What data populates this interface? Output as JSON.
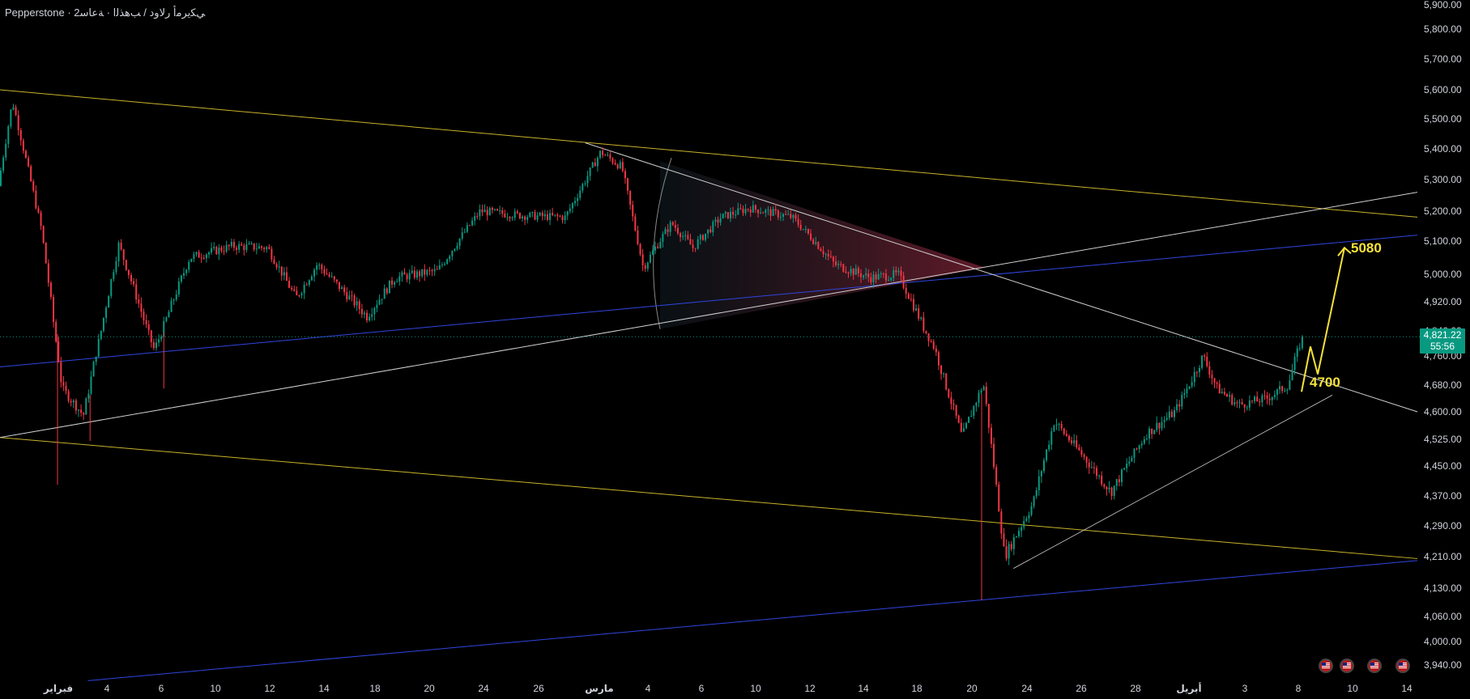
{
  "header": {
    "title": "Pepperstone · ﻲﻜﻳﺮﻣﺃ ﺭﻻﻭﺩ / ﺐﻫﺬﻟﺍ · ﺔﻋﺎﺳ2"
  },
  "price_tag": {
    "price": "4,821.22",
    "countdown": "55:56"
  },
  "flags": [
    {
      "name": "us-flag-icon"
    },
    {
      "name": "us-flag-icon"
    },
    {
      "name": "us-flag-icon"
    },
    {
      "name": "us-flag-icon"
    }
  ],
  "colors": {
    "background": "#000000",
    "up": "#089981",
    "down": "#f23645",
    "yellow_line": "#c9b32a",
    "blue_line": "#2f46e0",
    "white_line": "#d0d0d0",
    "arrow": "#f5e23a",
    "price_line": "#089981"
  },
  "chart_data": {
    "type": "candlestick",
    "title": "",
    "y_ticks": [
      "5,900.00",
      "5,800.00",
      "5,700.00",
      "5,600.00",
      "5,500.00",
      "5,400.00",
      "5,300.00",
      "5,200.00",
      "5,100.00",
      "5,000.00",
      "4,920.00",
      "4,840.00",
      "4,760.00",
      "4,680.00",
      "4,600.00",
      "4,525.00",
      "4,450.00",
      "4,370.00",
      "4,290.00",
      "4,210.00",
      "4,130.00",
      "4,060.00",
      "4,000.00",
      "3,940.00"
    ],
    "x_ticks": [
      "فبراير",
      "4",
      "6",
      "10",
      "12",
      "14",
      "18",
      "20",
      "24",
      "26",
      "مارس",
      "4",
      "6",
      "10",
      "12",
      "14",
      "18",
      "20",
      "24",
      "26",
      "28",
      "أبريل",
      "3",
      "8",
      "10",
      "14"
    ],
    "last_price": 4821.22,
    "path": [
      [
        0,
        5280
      ],
      [
        0.01,
        5560
      ],
      [
        0.03,
        5150
      ],
      [
        0.045,
        4670
      ],
      [
        0.06,
        4590
      ],
      [
        0.085,
        5090
      ],
      [
        0.11,
        4780
      ],
      [
        0.135,
        5050
      ],
      [
        0.165,
        5085
      ],
      [
        0.19,
        5080
      ],
      [
        0.21,
        4930
      ],
      [
        0.225,
        5030
      ],
      [
        0.26,
        4880
      ],
      [
        0.28,
        4990
      ],
      [
        0.31,
        5010
      ],
      [
        0.34,
        5200
      ],
      [
        0.37,
        5185
      ],
      [
        0.4,
        5180
      ],
      [
        0.425,
        5390
      ],
      [
        0.44,
        5340
      ],
      [
        0.455,
        5020
      ],
      [
        0.475,
        5160
      ],
      [
        0.49,
        5080
      ],
      [
        0.51,
        5180
      ],
      [
        0.53,
        5210
      ],
      [
        0.56,
        5180
      ],
      [
        0.59,
        5030
      ],
      [
        0.615,
        4990
      ],
      [
        0.635,
        5000
      ],
      [
        0.66,
        4790
      ],
      [
        0.68,
        4530
      ],
      [
        0.695,
        4685
      ],
      [
        0.71,
        4210
      ],
      [
        0.73,
        4350
      ],
      [
        0.745,
        4575
      ],
      [
        0.765,
        4480
      ],
      [
        0.785,
        4380
      ],
      [
        0.81,
        4540
      ],
      [
        0.83,
        4600
      ],
      [
        0.85,
        4760
      ],
      [
        0.86,
        4670
      ],
      [
        0.875,
        4620
      ],
      [
        0.895,
        4640
      ],
      [
        0.91,
        4680
      ],
      [
        0.92,
        4820
      ]
    ],
    "ylim": [
      3940,
      5900
    ],
    "annotations": [
      {
        "label": "5080",
        "type": "target"
      },
      {
        "label": "4700",
        "type": "support"
      }
    ],
    "lines": [
      {
        "color": "yellow",
        "from": [
          0,
          5600
        ],
        "to": [
          1,
          5180
        ]
      },
      {
        "color": "yellow",
        "from": [
          0,
          4530
        ],
        "to": [
          1,
          4205
        ]
      },
      {
        "color": "blue",
        "from": [
          0,
          4730
        ],
        "to": [
          1,
          5120
        ]
      },
      {
        "color": "blue",
        "from": [
          0.062,
          3900
        ],
        "to": [
          1,
          4200
        ]
      },
      {
        "color": "white",
        "from": [
          0,
          4530
        ],
        "to": [
          1,
          5260
        ]
      },
      {
        "color": "white",
        "from": [
          0.413,
          5420
        ],
        "to": [
          1,
          4600
        ]
      },
      {
        "color": "white",
        "from": [
          0.715,
          4180
        ],
        "to": [
          0.94,
          4650
        ]
      }
    ]
  }
}
